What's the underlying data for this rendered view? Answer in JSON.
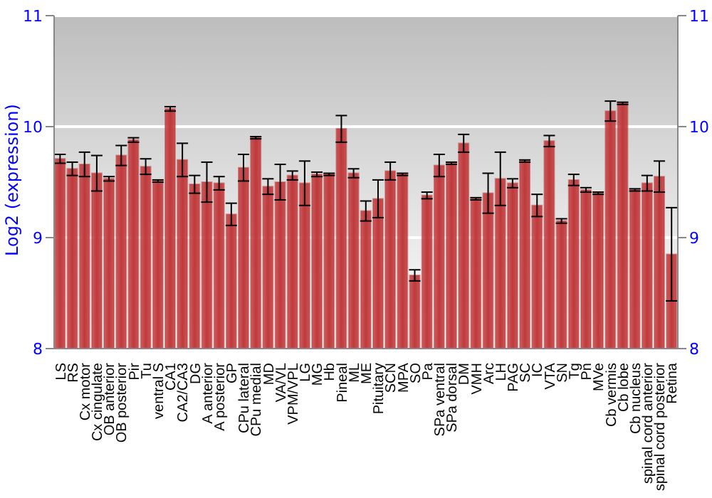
{
  "chart_data": {
    "type": "bar",
    "ylabel": "Log2 (expression)",
    "categories": [
      "LS",
      "RS",
      "Cx motor",
      "Cx cingulate",
      "OB anterior",
      "OB posterior",
      "Pir",
      "Tu",
      "ventral S",
      "CA1",
      "CA2/CA3",
      "DG",
      "A anterior",
      "A posterior",
      "GP",
      "CPu lateral",
      "CPu medial",
      "MD",
      "VA/VL",
      "VPM/VPL",
      "LG",
      "MG",
      "Hb",
      "Pineal",
      "ML",
      "ME",
      "Pituitary",
      "SCN",
      "MPA",
      "SO",
      "Pa",
      "SPa ventral",
      "SPa dorsal",
      "DM",
      "VMH",
      "Arc",
      "LH",
      "PAG",
      "SC",
      "IC",
      "VTA",
      "SN",
      "Tg",
      "Pn",
      "MVe",
      "Cb vermis",
      "Cb lobe",
      "Cb nucleus",
      "spinal cord anterior",
      "spinal cord posterior",
      "Retina"
    ],
    "values": [
      9.71,
      9.62,
      9.66,
      9.58,
      9.53,
      9.74,
      9.88,
      9.64,
      9.51,
      10.16,
      9.7,
      9.48,
      9.5,
      9.49,
      9.21,
      9.63,
      9.9,
      9.46,
      9.5,
      9.56,
      9.49,
      9.57,
      9.57,
      9.98,
      9.58,
      9.24,
      9.35,
      9.6,
      9.57,
      8.66,
      9.38,
      9.65,
      9.67,
      9.85,
      9.35,
      9.4,
      9.53,
      9.49,
      9.69,
      9.29,
      9.87,
      9.15,
      9.52,
      9.43,
      9.4,
      10.14,
      10.21,
      9.43,
      9.49,
      9.55,
      8.85
    ],
    "errors": [
      0.04,
      0.06,
      0.11,
      0.16,
      0.02,
      0.09,
      0.02,
      0.07,
      0.01,
      0.02,
      0.15,
      0.08,
      0.18,
      0.06,
      0.1,
      0.12,
      0.01,
      0.07,
      0.16,
      0.04,
      0.2,
      0.02,
      0.01,
      0.12,
      0.04,
      0.09,
      0.17,
      0.08,
      0.01,
      0.05,
      0.03,
      0.1,
      0.01,
      0.08,
      0.01,
      0.18,
      0.24,
      0.04,
      0.01,
      0.1,
      0.05,
      0.02,
      0.05,
      0.02,
      0.01,
      0.09,
      0.01,
      0.01,
      0.07,
      0.14,
      0.42
    ],
    "color": "#c0393b",
    "ylim": [
      8,
      11
    ],
    "yticks": [
      8,
      9,
      10,
      11
    ],
    "y2lim": [
      8,
      11
    ],
    "y2ticks": [
      8,
      9,
      10,
      11
    ],
    "grid": "y"
  }
}
